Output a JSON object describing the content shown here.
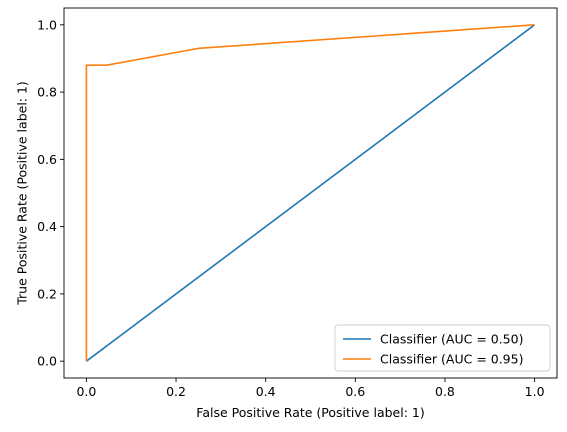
{
  "chart_data": {
    "type": "line",
    "title": "",
    "xlabel": "False Positive Rate (Positive label: 1)",
    "ylabel": "True Positive Rate (Positive label: 1)",
    "xlim": [
      -0.05,
      1.05
    ],
    "ylim": [
      -0.05,
      1.05
    ],
    "xticks": [
      0.0,
      0.2,
      0.4,
      0.6,
      0.8,
      1.0
    ],
    "yticks": [
      0.0,
      0.2,
      0.4,
      0.6,
      0.8,
      1.0
    ],
    "xtick_labels": [
      "0.0",
      "0.2",
      "0.4",
      "0.6",
      "0.8",
      "1.0"
    ],
    "ytick_labels": [
      "0.0",
      "0.2",
      "0.4",
      "0.6",
      "0.8",
      "1.0"
    ],
    "grid": false,
    "legend_position": "bottom-right",
    "series": [
      {
        "name": "Classifier (AUC = 0.50)",
        "color": "#1f77b4",
        "x": [
          0.0,
          1.0
        ],
        "y": [
          0.0,
          1.0
        ]
      },
      {
        "name": "Classifier (AUC = 0.95)",
        "color": "#ff7f0e",
        "x": [
          0.0,
          0.0,
          0.045,
          0.25,
          1.0
        ],
        "y": [
          0.0,
          0.88,
          0.88,
          0.93,
          1.0
        ]
      }
    ]
  }
}
